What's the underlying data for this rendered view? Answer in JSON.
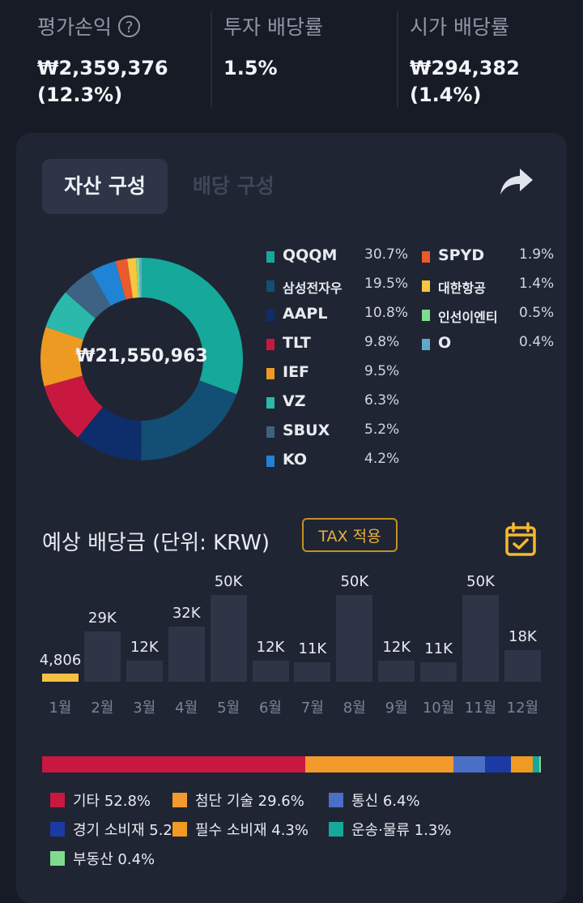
{
  "summary": {
    "eval_pl": {
      "label": "평가손익",
      "help_icon": "?",
      "amount": "₩2,359,376",
      "pct": "(12.3%)"
    },
    "invest_yield": {
      "label": "투자 배당률",
      "value": "1.5%"
    },
    "market_yield": {
      "label": "시가 배당률",
      "amount": "₩294,382",
      "pct": "(1.4%)"
    }
  },
  "tabs": {
    "asset": "자산 구성",
    "dividend": "배당 구성"
  },
  "composition": {
    "total": "₩21,550,963",
    "holdings": [
      {
        "name": "QQQM",
        "pct": "30.7%",
        "value": 30.7,
        "color": "#16a89a"
      },
      {
        "name": "삼성전자우",
        "pct": "19.5%",
        "value": 19.5,
        "color": "#134e74"
      },
      {
        "name": "AAPL",
        "pct": "10.8%",
        "value": 10.8,
        "color": "#0e2d6b"
      },
      {
        "name": "TLT",
        "pct": "9.8%",
        "value": 9.8,
        "color": "#c9183f"
      },
      {
        "name": "IEF",
        "pct": "9.5%",
        "value": 9.5,
        "color": "#ec9a22"
      },
      {
        "name": "VZ",
        "pct": "6.3%",
        "value": 6.3,
        "color": "#2bb9ab"
      },
      {
        "name": "SBUX",
        "pct": "5.2%",
        "value": 5.2,
        "color": "#3d6283"
      },
      {
        "name": "KO",
        "pct": "4.2%",
        "value": 4.2,
        "color": "#1f83d6"
      },
      {
        "name": "SPYD",
        "pct": "1.9%",
        "value": 1.9,
        "color": "#ea5a2b"
      },
      {
        "name": "대한항공",
        "pct": "1.4%",
        "value": 1.4,
        "color": "#f7c642"
      },
      {
        "name": "인선이엔티",
        "pct": "0.5%",
        "value": 0.5,
        "color": "#7ddc8c"
      },
      {
        "name": "O",
        "pct": "0.4%",
        "value": 0.4,
        "color": "#61a9c9"
      }
    ]
  },
  "dividend": {
    "title": "예상 배당금 (단위: KRW)",
    "tax_button": "TAX 적용",
    "calendar_icon": "calendar-check-icon",
    "share_icon": "share-arrow-icon",
    "chart_data": {
      "type": "bar",
      "categories": [
        "1월",
        "2월",
        "3월",
        "4월",
        "5월",
        "6월",
        "7월",
        "8월",
        "9월",
        "10월",
        "11월",
        "12월"
      ],
      "values": [
        4806,
        29000,
        12000,
        32000,
        50000,
        12000,
        11000,
        50000,
        12000,
        11000,
        50000,
        18000
      ],
      "value_labels": [
        "4,806",
        "29K",
        "12K",
        "32K",
        "50K",
        "12K",
        "11K",
        "50K",
        "12K",
        "11K",
        "50K",
        "18K"
      ],
      "highlight_index": 0
    }
  },
  "sectors": [
    {
      "name": "기타",
      "pct": "52.8%",
      "value": 52.8,
      "color": "#c9183f"
    },
    {
      "name": "첨단 기술",
      "pct": "29.6%",
      "value": 29.6,
      "color": "#f39a2c"
    },
    {
      "name": "통신",
      "pct": "6.4%",
      "value": 6.4,
      "color": "#4a6fc6"
    },
    {
      "name": "경기 소비재",
      "pct": "5.2%",
      "value": 5.2,
      "color": "#1b3aa3"
    },
    {
      "name": "필수 소비재",
      "pct": "4.3%",
      "value": 4.3,
      "color": "#ef9a22"
    },
    {
      "name": "운송·물류",
      "pct": "1.3%",
      "value": 1.3,
      "color": "#16a89a"
    },
    {
      "name": "부동산",
      "pct": "0.4%",
      "value": 0.4,
      "color": "#7ddc8c"
    }
  ]
}
